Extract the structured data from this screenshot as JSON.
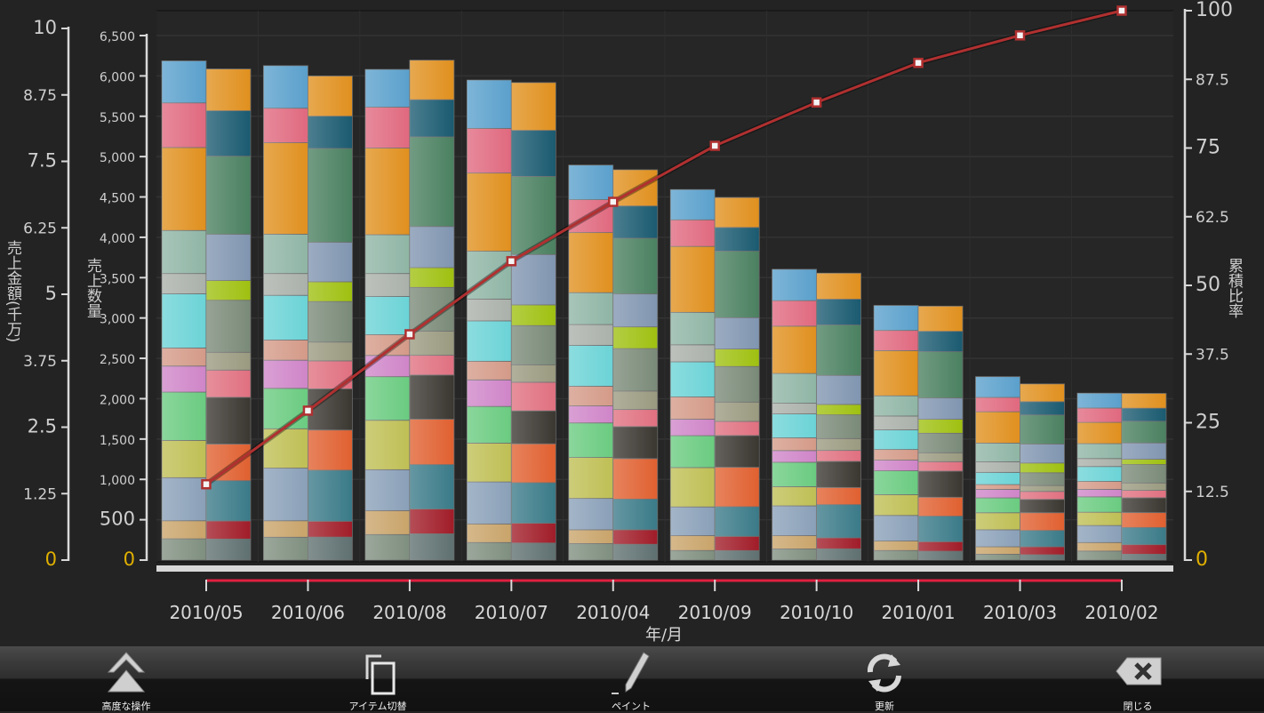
{
  "chart_data": {
    "type": "bar",
    "subtype": "stacked-bar-pairs-with-cumulative-line",
    "categories": [
      "2010/05",
      "2010/06",
      "2010/08",
      "2010/07",
      "2010/04",
      "2010/09",
      "2010/10",
      "2010/01",
      "2010/03",
      "2010/02"
    ],
    "xlabel": "年/月",
    "axes": {
      "left": {
        "label": "売上金額(千万)",
        "range": [
          0,
          10
        ],
        "ticks": [
          "0",
          "1.25",
          "2.5",
          "3.75",
          "5",
          "6.25",
          "7.5",
          "8.75",
          "10"
        ],
        "tick_values": [
          0,
          1.25,
          2.5,
          3.75,
          5,
          6.25,
          7.5,
          8.75,
          10
        ]
      },
      "middle": {
        "label": "売上数量",
        "range": [
          0,
          6500
        ],
        "ticks": [
          "0",
          "500",
          "1,000",
          "1,500",
          "2,000",
          "2,500",
          "3,000",
          "3,500",
          "4,000",
          "4,500",
          "5,000",
          "5,500",
          "6,000",
          "6,500"
        ],
        "tick_values": [
          0,
          500,
          1000,
          1500,
          2000,
          2500,
          3000,
          3500,
          4000,
          4500,
          5000,
          5500,
          6000,
          6500
        ]
      },
      "right": {
        "label": "累積比率",
        "range": [
          0,
          100
        ],
        "ticks": [
          "0",
          "12.5",
          "25",
          "37.5",
          "50",
          "62.5",
          "75",
          "87.5",
          "100"
        ],
        "tick_values": [
          0,
          12.5,
          25,
          37.5,
          50,
          62.5,
          75,
          87.5,
          100
        ]
      }
    },
    "grid": true,
    "legend": "none",
    "series": [
      {
        "type": "stacked-bar",
        "axis": "left",
        "colors": [
          "#7f8f7f",
          "#c9a46a",
          "#8aa0b8",
          "#bfbf55",
          "#6acb80",
          "#cf85c8",
          "#d49a88",
          "#6bd3d6",
          "#aab0aa",
          "#8fb5a5",
          "#e0901e",
          "#e0697f",
          "#5aa0cc"
        ],
        "stacks": [
          [
            0.4,
            0.34,
            0.81,
            0.7,
            0.91,
            0.49,
            0.34,
            1.02,
            0.38,
            0.81,
            1.56,
            0.84,
            0.79
          ],
          [
            0.43,
            0.31,
            0.99,
            0.74,
            0.76,
            0.53,
            0.38,
            0.84,
            0.41,
            0.74,
            1.72,
            0.65,
            0.8
          ],
          [
            0.48,
            0.45,
            0.77,
            0.93,
            0.82,
            0.4,
            0.39,
            0.72,
            0.43,
            0.73,
            1.63,
            0.77,
            0.71
          ],
          [
            0.33,
            0.35,
            0.79,
            0.73,
            0.69,
            0.5,
            0.35,
            0.76,
            0.41,
            0.9,
            1.47,
            0.84,
            0.91
          ],
          [
            0.31,
            0.26,
            0.59,
            0.77,
            0.65,
            0.32,
            0.37,
            0.77,
            0.39,
            0.6,
            1.13,
            0.62,
            0.65
          ],
          [
            0.18,
            0.28,
            0.54,
            0.74,
            0.6,
            0.31,
            0.42,
            0.66,
            0.32,
            0.61,
            1.24,
            0.5,
            0.57
          ],
          [
            0.21,
            0.25,
            0.56,
            0.36,
            0.46,
            0.22,
            0.24,
            0.45,
            0.2,
            0.56,
            0.89,
            0.48,
            0.59
          ],
          [
            0.18,
            0.18,
            0.48,
            0.39,
            0.45,
            0.2,
            0.2,
            0.37,
            0.26,
            0.38,
            0.85,
            0.38,
            0.47
          ],
          [
            0.11,
            0.14,
            0.32,
            0.32,
            0.28,
            0.16,
            0.09,
            0.23,
            0.2,
            0.35,
            0.59,
            0.27,
            0.39
          ],
          [
            0.17,
            0.16,
            0.32,
            0.25,
            0.29,
            0.14,
            0.15,
            0.28,
            0.15,
            0.28,
            0.4,
            0.27,
            0.28
          ]
        ]
      },
      {
        "type": "stacked-bar",
        "axis": "middle",
        "colors": [
          "#5f7070",
          "#a01c28",
          "#3a7a88",
          "#e06030",
          "#3a3630",
          "#e07080",
          "#9a9a80",
          "#7a8a78",
          "#9fc010",
          "#8095b0",
          "#4a8060",
          "#1a5a70",
          "#e0901e"
        ],
        "stacks": [
          [
            261,
            224,
            499,
            453,
            580,
            338,
            220,
            645,
            245,
            572,
            968,
            563,
            518
          ],
          [
            285,
            196,
            633,
            498,
            510,
            347,
            233,
            502,
            245,
            489,
            1163,
            400,
            498
          ],
          [
            326,
            306,
            551,
            563,
            547,
            245,
            298,
            543,
            245,
            510,
            1110,
            461,
            490
          ],
          [
            212,
            245,
            502,
            482,
            408,
            355,
            216,
            486,
            257,
            624,
            967,
            571,
            592
          ],
          [
            196,
            180,
            380,
            502,
            396,
            212,
            229,
            526,
            269,
            408,
            690,
            400,
            449
          ],
          [
            118,
            176,
            367,
            489,
            393,
            176,
            239,
            441,
            217,
            389,
            823,
            294,
            371
          ],
          [
            140,
            136,
            411,
            213,
            323,
            136,
            147,
            294,
            129,
            360,
            624,
            320,
            323
          ],
          [
            110,
            118,
            316,
            235,
            323,
            118,
            110,
            242,
            173,
            264,
            573,
            253,
            312
          ],
          [
            66,
            99,
            202,
            220,
            165,
            99,
            73,
            158,
            121,
            235,
            360,
            165,
            220
          ],
          [
            73,
            118,
            213,
            184,
            184,
            92,
            92,
            228,
            66,
            202,
            268,
            162,
            184
          ]
        ]
      },
      {
        "type": "line",
        "axis": "right",
        "color": "#b03030",
        "values": [
          13.8,
          27.2,
          41.1,
          54.4,
          65.2,
          75.4,
          83.3,
          90.5,
          95.5,
          100
        ]
      }
    ],
    "zero_label_color": "#e0b000"
  },
  "toolbar": {
    "items": [
      {
        "label": "高度な操作",
        "icon": "double-chevron-up-icon"
      },
      {
        "label": "アイテム切替",
        "icon": "switch-items-icon"
      },
      {
        "label": "ペイント",
        "icon": "pencil-icon"
      },
      {
        "label": "更新",
        "icon": "refresh-icon"
      },
      {
        "label": "閉じる",
        "icon": "close-backspace-icon"
      }
    ]
  }
}
